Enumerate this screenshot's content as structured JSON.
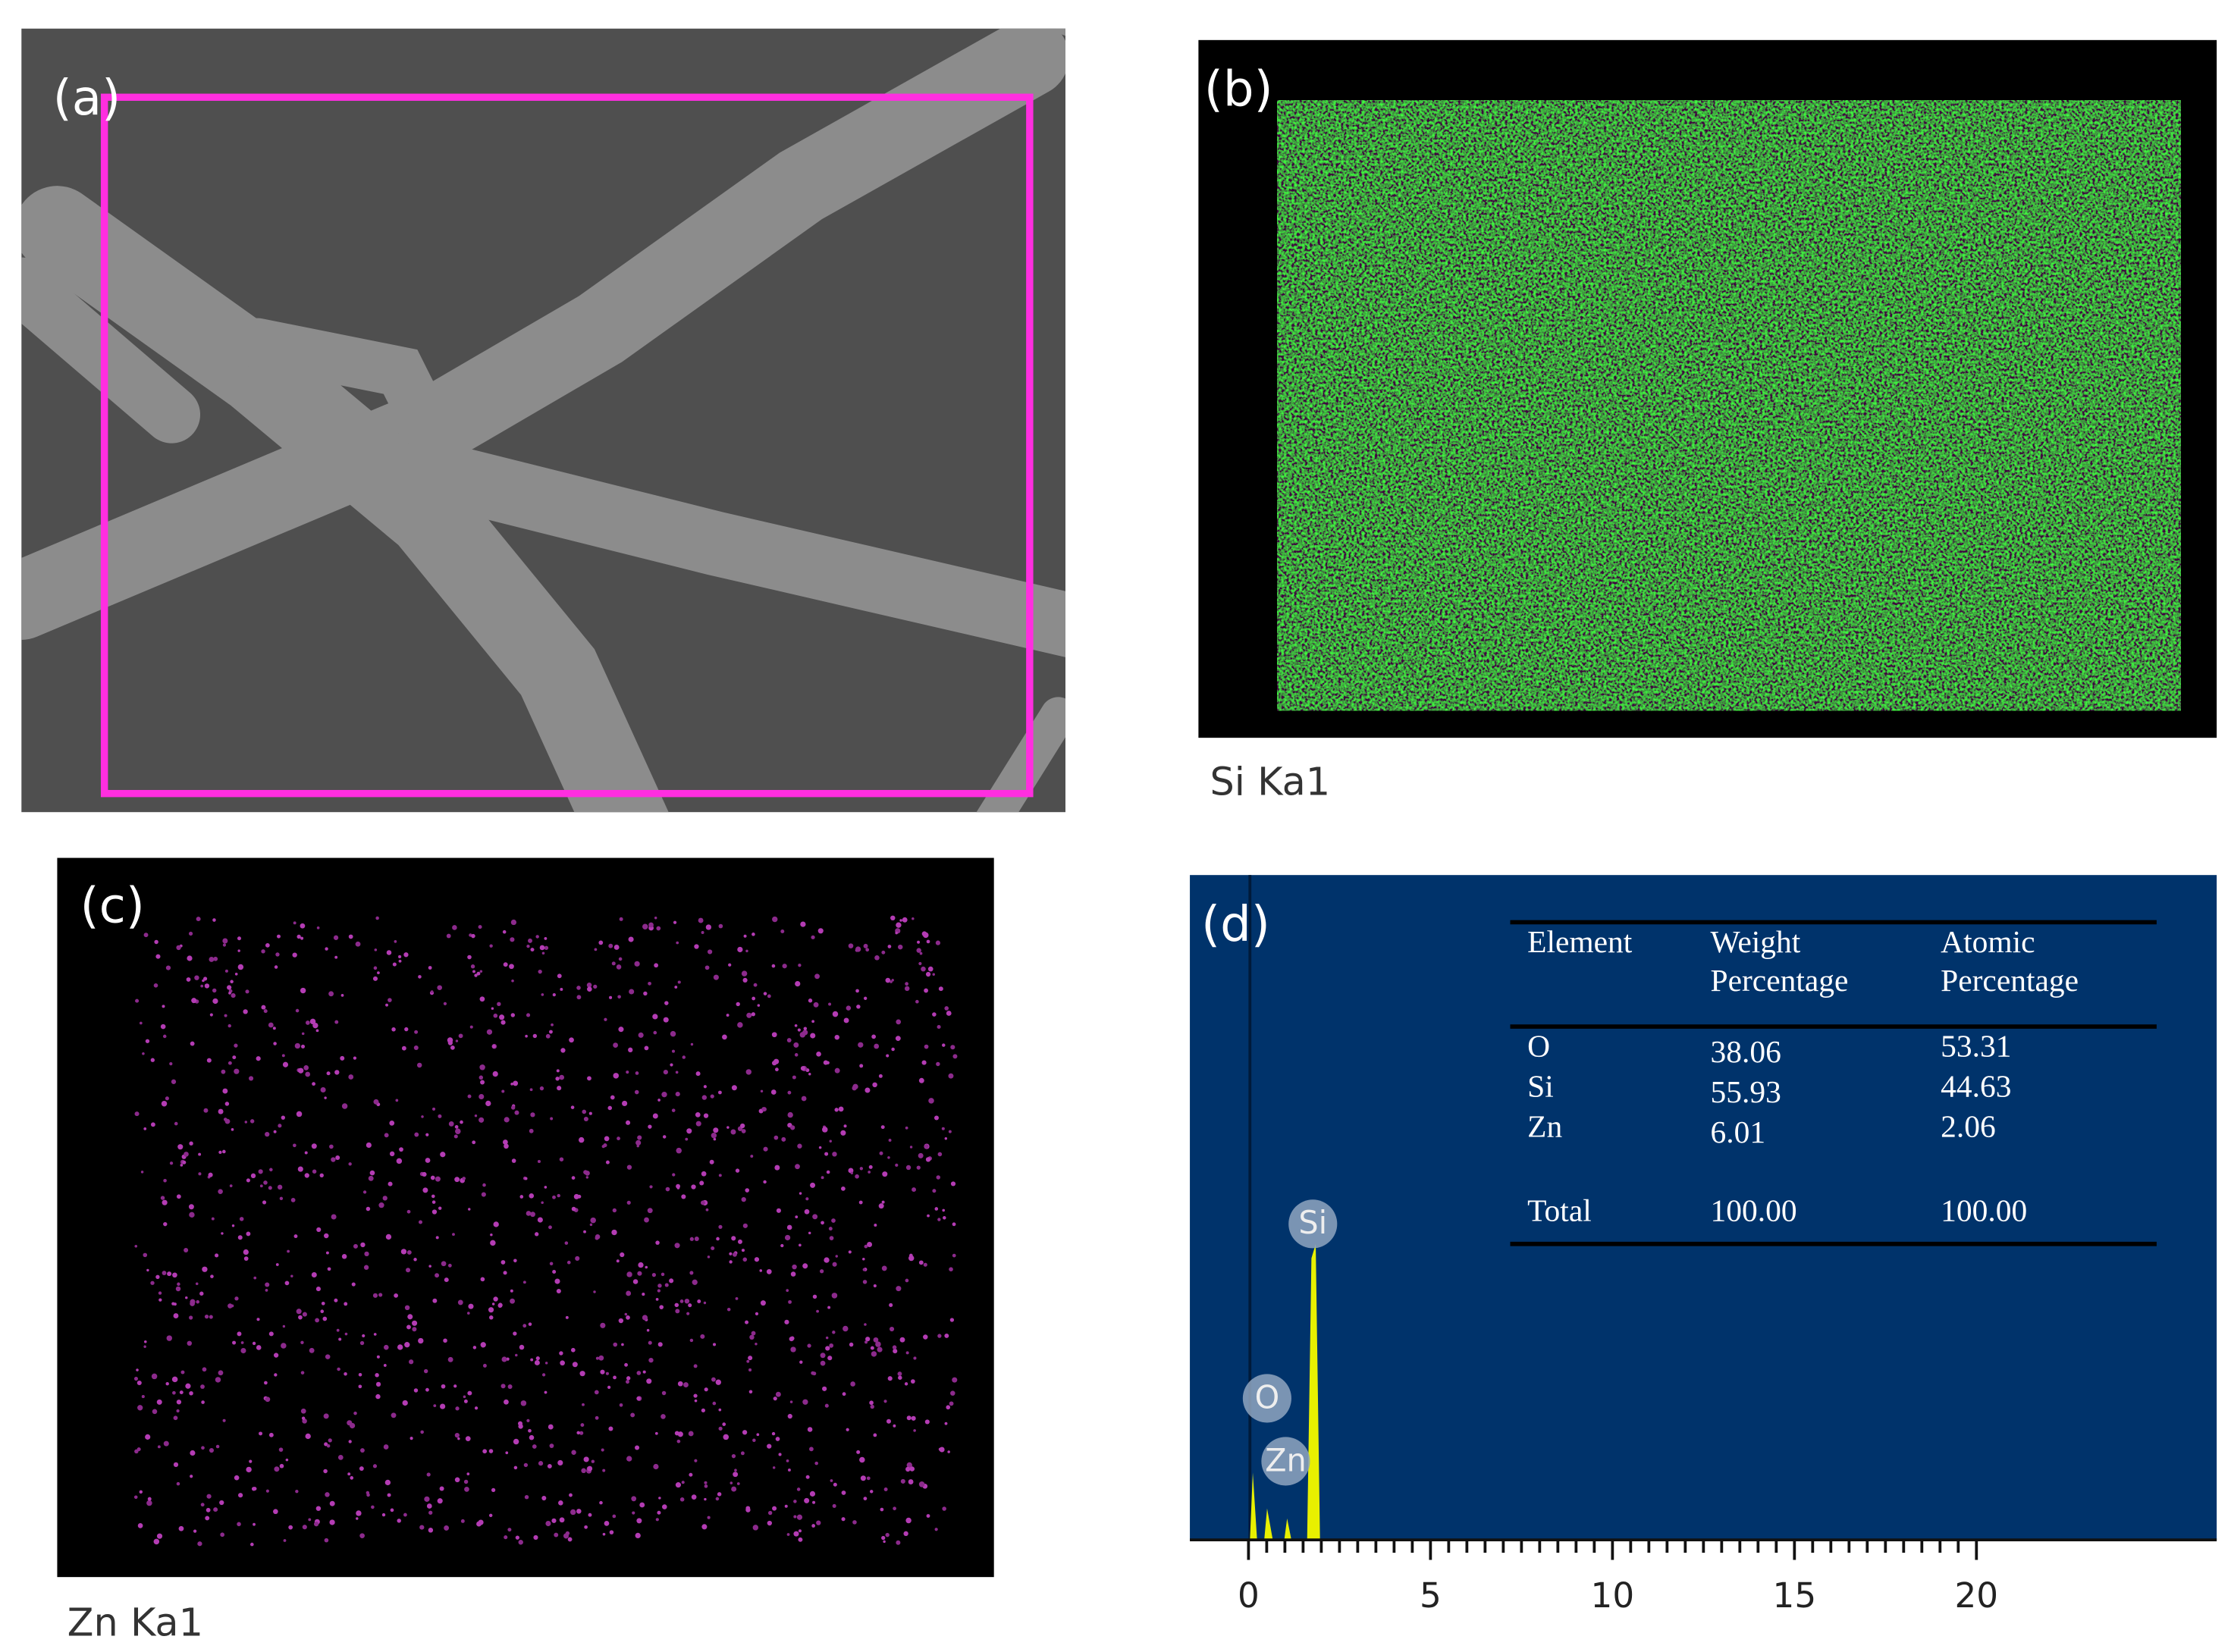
{
  "panels": {
    "a": {
      "label": "(a)"
    },
    "b": {
      "label": "(b)",
      "caption": "Si Ka1"
    },
    "c": {
      "label": "(c)",
      "caption": "Zn Ka1"
    },
    "d": {
      "label": "(d)",
      "table": {
        "header": [
          [
            "Element"
          ],
          [
            "Weight",
            "Percentage"
          ],
          [
            "Atomic",
            "Percentage"
          ]
        ],
        "rows": [
          [
            "O",
            "38.06",
            "53.31"
          ],
          [
            "Si",
            "55.93",
            "44.63"
          ],
          [
            "Zn",
            "6.01",
            "2.06"
          ]
        ],
        "total": [
          "Total",
          "100.00",
          "100.00"
        ]
      },
      "spectrum": {
        "peaks": [
          "Si",
          "O",
          "Zn"
        ],
        "xticks": [
          "0",
          "5",
          "10",
          "15",
          "20"
        ]
      }
    }
  }
}
